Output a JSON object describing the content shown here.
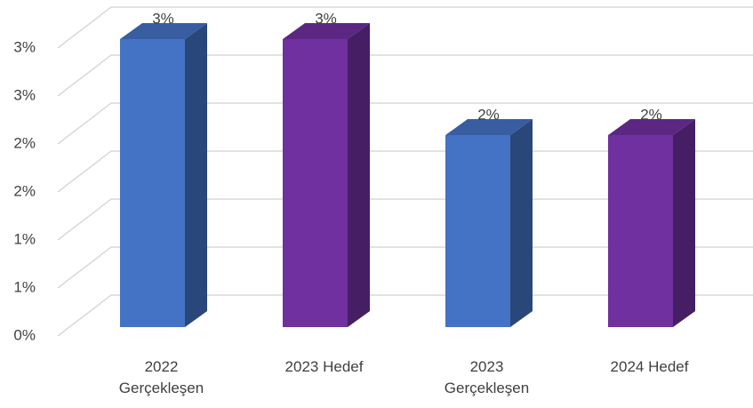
{
  "chart_data": {
    "type": "bar3d",
    "categories": [
      "2022 Gerçekleşen",
      "2023 Hedef",
      "2023 Gerçekleşen",
      "2024 Hedef"
    ],
    "values": [
      3,
      3,
      2,
      2
    ],
    "value_labels": [
      "3%",
      "3%",
      "2%",
      "2%"
    ],
    "colors": [
      "#4472c4",
      "#7030a0",
      "#4472c4",
      "#7030a0"
    ],
    "ylim": [
      0,
      3
    ],
    "yticks": [
      {
        "value": 0,
        "label": "0%"
      },
      {
        "value": 0.5,
        "label": "1%"
      },
      {
        "value": 1,
        "label": "1%"
      },
      {
        "value": 1.5,
        "label": "2%"
      },
      {
        "value": 2,
        "label": "2%"
      },
      {
        "value": 2.5,
        "label": "3%"
      },
      {
        "value": 3,
        "label": "3%"
      }
    ],
    "grid": true
  }
}
